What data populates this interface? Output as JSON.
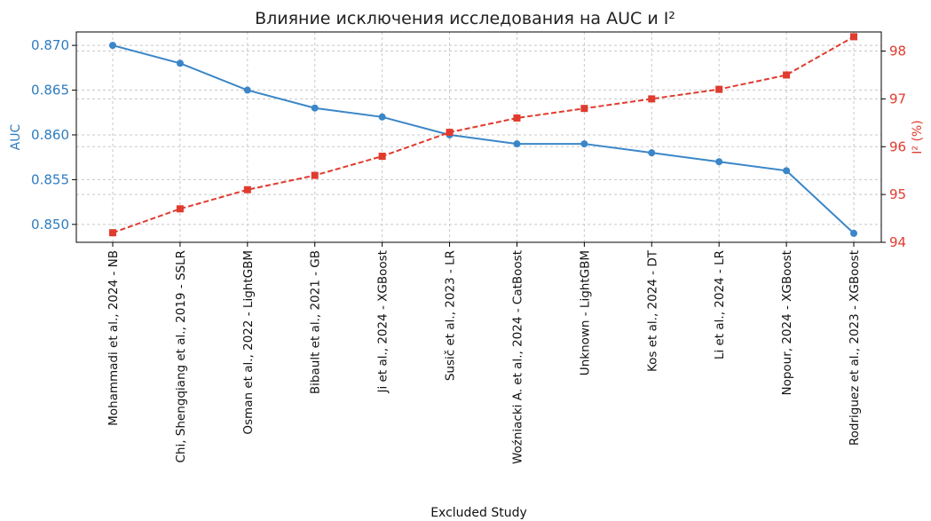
{
  "chart_data": {
    "type": "line",
    "title": "Влияние исключения исследования на AUC и I²",
    "xlabel": "Excluded Study",
    "categories": [
      "Mohammadi et al., 2024 - NB",
      "Chi, Shengqiang et al., 2019 - SSLR",
      "Osman et al., 2022 - LightGBM",
      "Bibault et al., 2021 - GB",
      "Ji et al., 2024 - XGBoost",
      "Susič et al., 2023 - LR",
      "Woźniacki A. et al., 2024 - CatBoost",
      "Unknown - LightGBM",
      "Kos et al., 2024 - DT",
      "Li et al., 2024 - LR",
      "Nopour, 2024 - XGBoost",
      "Rodriguez et al., 2023 - XGBoost"
    ],
    "left_axis": {
      "label": "AUC",
      "color": "#2e7cbf",
      "ylim": [
        0.848,
        0.8715
      ],
      "ticks": [
        "0.850",
        "0.855",
        "0.860",
        "0.865",
        "0.870"
      ],
      "tick_values": [
        0.85,
        0.855,
        0.86,
        0.865,
        0.87
      ]
    },
    "right_axis": {
      "label": "I² (%)",
      "color": "#e03b2e",
      "ylim": [
        94.0,
        98.4
      ],
      "ticks": [
        "94",
        "95",
        "96",
        "97",
        "98"
      ],
      "tick_values": [
        94,
        95,
        96,
        97,
        98
      ]
    },
    "series": [
      {
        "axis": "left",
        "color": "#3a86c8",
        "style": "solid",
        "marker": "circle",
        "values": [
          0.87,
          0.868,
          0.865,
          0.863,
          0.862,
          0.86,
          0.859,
          0.859,
          0.858,
          0.857,
          0.856,
          0.849
        ]
      },
      {
        "axis": "right",
        "color": "#e03b2e",
        "style": "dashed",
        "marker": "square",
        "values": [
          94.2,
          94.7,
          95.1,
          95.4,
          95.8,
          96.3,
          96.6,
          96.8,
          97.0,
          97.2,
          97.5,
          98.3
        ]
      }
    ],
    "grid": true
  }
}
